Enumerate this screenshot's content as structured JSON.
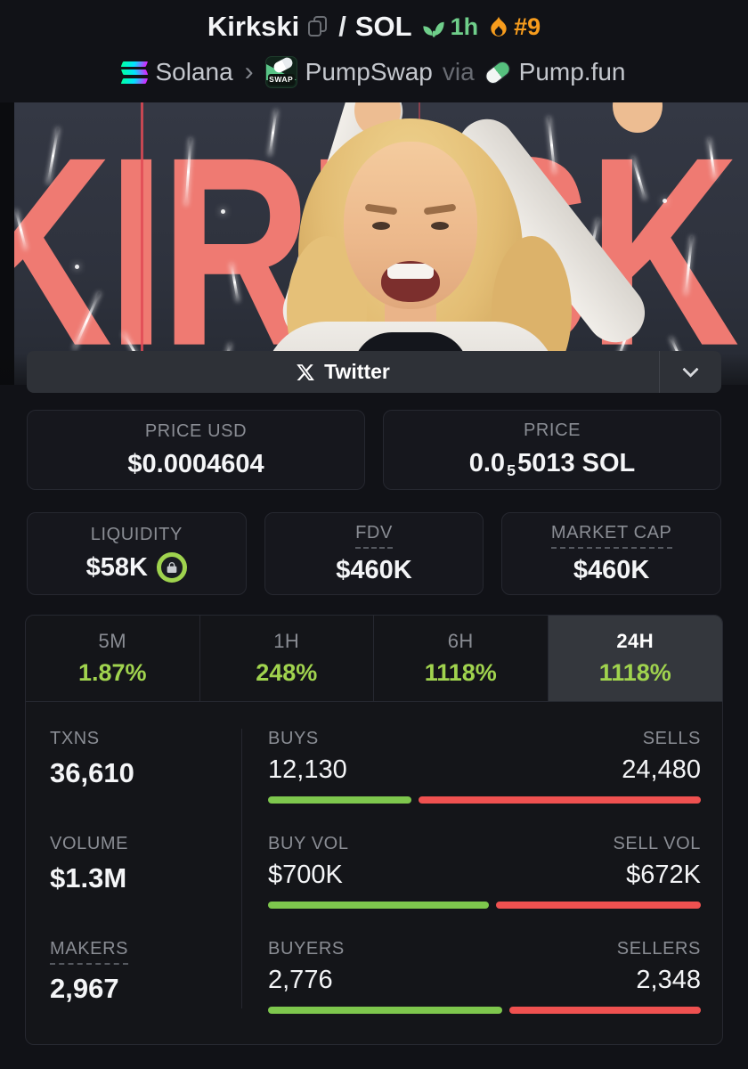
{
  "header": {
    "token_name": "Kirkski",
    "separator": "/",
    "quote_symbol": "SOL",
    "age": "1h",
    "rank": "#9",
    "chain": "Solana",
    "crumb_chevron": "›",
    "dex": "PumpSwap",
    "dex_badge": "SWAP",
    "via_label": "via",
    "launchpad": "Pump.fun"
  },
  "hero": {
    "banner_text": "KIRKSKI"
  },
  "social": {
    "label": "Twitter",
    "expand_hint": "more-links"
  },
  "price": {
    "usd": {
      "label": "PRICE USD",
      "value": "$0.0004604"
    },
    "native": {
      "label": "PRICE",
      "prefix": "0.0",
      "sub": "5",
      "suffix": "5013 SOL"
    }
  },
  "metrics": {
    "liquidity": {
      "label": "LIQUIDITY",
      "value": "$58K",
      "locked": true
    },
    "fdv": {
      "label": "FDV",
      "value": "$460K"
    },
    "mcap": {
      "label": "MARKET CAP",
      "value": "$460K"
    }
  },
  "timeframes": [
    {
      "label": "5M",
      "change": "1.87%",
      "active": false
    },
    {
      "label": "1H",
      "change": "248%",
      "active": false
    },
    {
      "label": "6H",
      "change": "1118%",
      "active": false
    },
    {
      "label": "24H",
      "change": "1118%",
      "active": true
    }
  ],
  "stats": [
    {
      "left_label": "TXNS",
      "left_value": "36,610",
      "a_label": "BUYS",
      "a_value": "12,130",
      "b_label": "SELLS",
      "b_value": "24,480",
      "a_pct": 33.1
    },
    {
      "left_label": "VOLUME",
      "left_value": "$1.3M",
      "a_label": "BUY VOL",
      "a_value": "$700K",
      "b_label": "SELL VOL",
      "b_value": "$672K",
      "a_pct": 51.0
    },
    {
      "left_label": "MAKERS",
      "left_value": "2,967",
      "a_label": "BUYERS",
      "a_value": "2,776",
      "b_label": "SELLERS",
      "b_value": "2,348",
      "a_pct": 54.2
    }
  ],
  "colors": {
    "background": "#111217",
    "card_border": "#262830",
    "accent_lime": "#a0d34e",
    "bar_green": "#7ec74d",
    "bar_red": "#ef5150",
    "age_green": "#6fce8a",
    "rank_orange": "#f79c1d",
    "banner_salmon": "#ef7a72"
  }
}
